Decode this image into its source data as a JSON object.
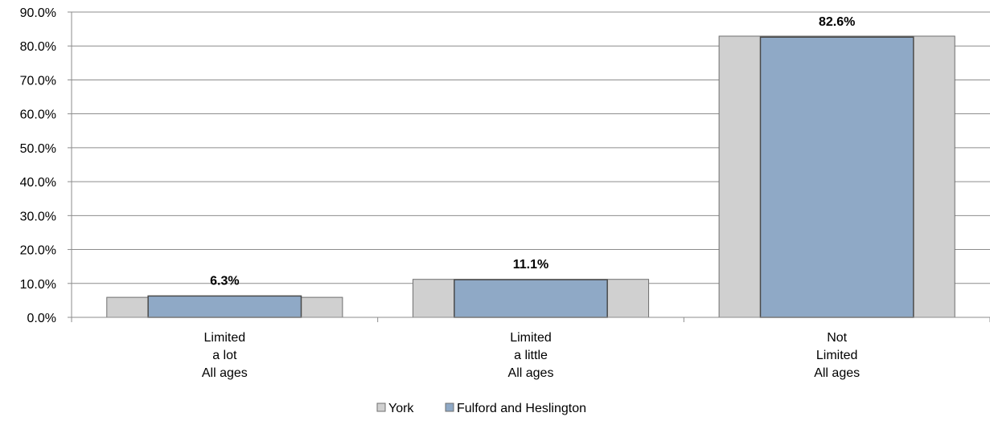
{
  "chart_data": {
    "type": "bar",
    "categories": [
      [
        "Limited",
        "a lot",
        "All ages"
      ],
      [
        "Limited",
        "a little",
        "All ages"
      ],
      [
        "Not",
        "Limited",
        "All ages"
      ]
    ],
    "series": [
      {
        "name": "York",
        "values": [
          5.9,
          11.2,
          82.9
        ],
        "color": "#d0d0d0"
      },
      {
        "name": "Fulford and Heslington",
        "values": [
          6.3,
          11.1,
          82.6
        ],
        "color": "#8fa9c6",
        "data_labels": [
          "6.3%",
          "11.1%",
          "82.6%"
        ]
      }
    ],
    "ylim": [
      0,
      90
    ],
    "yticks": [
      "0.0%",
      "10.0%",
      "20.0%",
      "30.0%",
      "40.0%",
      "50.0%",
      "60.0%",
      "70.0%",
      "80.0%",
      "90.0%"
    ],
    "grid": true,
    "legend_position": "bottom"
  }
}
